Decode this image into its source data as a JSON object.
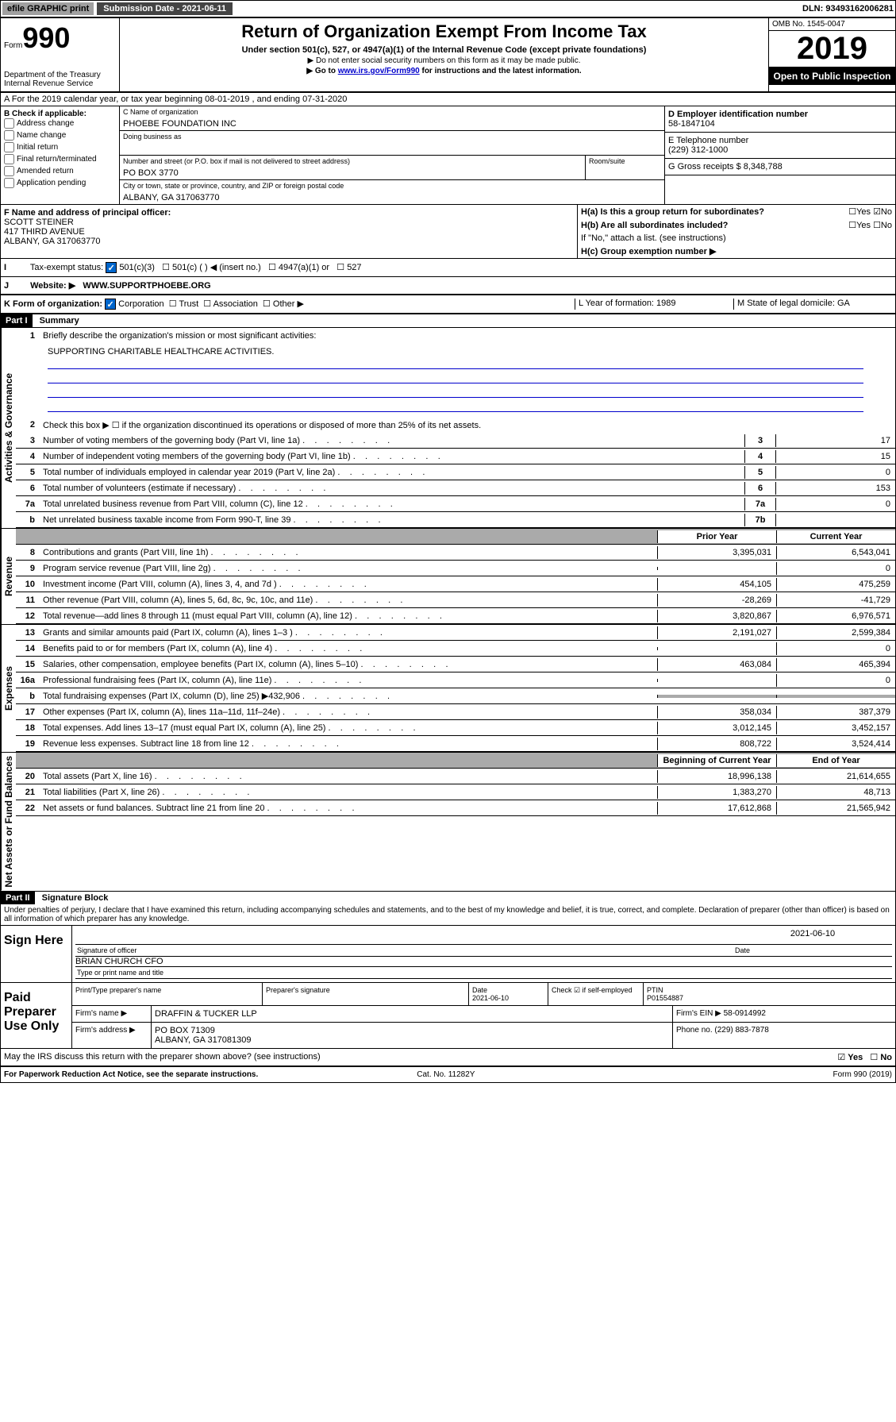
{
  "topbar": {
    "efile": "efile GRAPHIC print",
    "subdate_label": "Submission Date - 2021-06-11",
    "dln": "DLN: 93493162006281"
  },
  "header": {
    "form_label": "Form",
    "form_num": "990",
    "dept": "Department of the Treasury Internal Revenue Service",
    "title": "Return of Organization Exempt From Income Tax",
    "subtitle": "Under section 501(c), 527, or 4947(a)(1) of the Internal Revenue Code (except private foundations)",
    "note1": "▶ Do not enter social security numbers on this form as it may be made public.",
    "note2_pre": "▶ Go to ",
    "note2_link": "www.irs.gov/Form990",
    "note2_post": " for instructions and the latest information.",
    "omb": "OMB No. 1545-0047",
    "year": "2019",
    "open": "Open to Public Inspection"
  },
  "rowA": "A For the 2019 calendar year, or tax year beginning 08-01-2019    , and ending 07-31-2020",
  "boxB": {
    "label": "B Check if applicable:",
    "opts": [
      "Address change",
      "Name change",
      "Initial return",
      "Final return/terminated",
      "Amended return",
      "Application pending"
    ]
  },
  "boxC": {
    "name_label": "C Name of organization",
    "name": "PHOEBE FOUNDATION INC",
    "dba_label": "Doing business as",
    "addr_label": "Number and street (or P.O. box if mail is not delivered to street address)",
    "room_label": "Room/suite",
    "addr": "PO BOX 3770",
    "city_label": "City or town, state or province, country, and ZIP or foreign postal code",
    "city": "ALBANY, GA  317063770"
  },
  "boxD": {
    "label": "D Employer identification number",
    "val": "58-1847104"
  },
  "boxE": {
    "label": "E Telephone number",
    "val": "(229) 312-1000"
  },
  "boxG": {
    "label": "G Gross receipts $ 8,348,788"
  },
  "boxF": {
    "label": "F  Name and address of principal officer:",
    "name": "SCOTT STEINER",
    "addr1": "417 THIRD AVENUE",
    "addr2": "ALBANY, GA  317063770"
  },
  "boxH": {
    "a": "H(a)  Is this a group return for subordinates?",
    "b": "H(b)  Are all subordinates included?",
    "note": "If \"No,\" attach a list. (see instructions)",
    "c": "H(c)  Group exemption number ▶"
  },
  "rowI": {
    "label": "Tax-exempt status:",
    "opts": [
      "501(c)(3)",
      "501(c) (   ) ◀ (insert no.)",
      "4947(a)(1) or",
      "527"
    ]
  },
  "rowJ": {
    "label": "J",
    "text": "Website: ▶",
    "val": "WWW.SUPPORTPHOEBE.ORG"
  },
  "rowK": {
    "label": "K Form of organization:",
    "opts": [
      "Corporation",
      "Trust",
      "Association",
      "Other ▶"
    ],
    "L": "L Year of formation: 1989",
    "M": "M State of legal domicile: GA"
  },
  "part1": {
    "label": "Part I",
    "title": "Summary",
    "q1": "Briefly describe the organization's mission or most significant activities:",
    "mission": "SUPPORTING CHARITABLE HEALTHCARE ACTIVITIES.",
    "q2": "Check this box ▶ ☐  if the organization discontinued its operations or disposed of more than 25% of its net assets.",
    "prior": "Prior Year",
    "current": "Current Year",
    "begin": "Beginning of Current Year",
    "end": "End of Year"
  },
  "govLabel": "Activities & Governance",
  "revLabel": "Revenue",
  "expLabel": "Expenses",
  "netLabel": "Net Assets or Fund Balances",
  "lines_gov": [
    {
      "n": "3",
      "t": "Number of voting members of the governing body (Part VI, line 1a)",
      "b": "3",
      "v": "17"
    },
    {
      "n": "4",
      "t": "Number of independent voting members of the governing body (Part VI, line 1b)",
      "b": "4",
      "v": "15"
    },
    {
      "n": "5",
      "t": "Total number of individuals employed in calendar year 2019 (Part V, line 2a)",
      "b": "5",
      "v": "0"
    },
    {
      "n": "6",
      "t": "Total number of volunteers (estimate if necessary)",
      "b": "6",
      "v": "153"
    },
    {
      "n": "7a",
      "t": "Total unrelated business revenue from Part VIII, column (C), line 12",
      "b": "7a",
      "v": "0"
    },
    {
      "n": "b",
      "t": "Net unrelated business taxable income from Form 990-T, line 39",
      "b": "7b",
      "v": ""
    }
  ],
  "lines_rev": [
    {
      "n": "8",
      "t": "Contributions and grants (Part VIII, line 1h)",
      "p": "3,395,031",
      "c": "6,543,041"
    },
    {
      "n": "9",
      "t": "Program service revenue (Part VIII, line 2g)",
      "p": "",
      "c": "0"
    },
    {
      "n": "10",
      "t": "Investment income (Part VIII, column (A), lines 3, 4, and 7d )",
      "p": "454,105",
      "c": "475,259"
    },
    {
      "n": "11",
      "t": "Other revenue (Part VIII, column (A), lines 5, 6d, 8c, 9c, 10c, and 11e)",
      "p": "-28,269",
      "c": "-41,729"
    },
    {
      "n": "12",
      "t": "Total revenue—add lines 8 through 11 (must equal Part VIII, column (A), line 12)",
      "p": "3,820,867",
      "c": "6,976,571"
    }
  ],
  "lines_exp": [
    {
      "n": "13",
      "t": "Grants and similar amounts paid (Part IX, column (A), lines 1–3 )",
      "p": "2,191,027",
      "c": "2,599,384"
    },
    {
      "n": "14",
      "t": "Benefits paid to or for members (Part IX, column (A), line 4)",
      "p": "",
      "c": "0"
    },
    {
      "n": "15",
      "t": "Salaries, other compensation, employee benefits (Part IX, column (A), lines 5–10)",
      "p": "463,084",
      "c": "465,394"
    },
    {
      "n": "16a",
      "t": "Professional fundraising fees (Part IX, column (A), line 11e)",
      "p": "",
      "c": "0"
    },
    {
      "n": "b",
      "t": "Total fundraising expenses (Part IX, column (D), line 25) ▶432,906",
      "p": "",
      "c": ""
    },
    {
      "n": "17",
      "t": "Other expenses (Part IX, column (A), lines 11a–11d, 11f–24e)",
      "p": "358,034",
      "c": "387,379"
    },
    {
      "n": "18",
      "t": "Total expenses. Add lines 13–17 (must equal Part IX, column (A), line 25)",
      "p": "3,012,145",
      "c": "3,452,157"
    },
    {
      "n": "19",
      "t": "Revenue less expenses. Subtract line 18 from line 12",
      "p": "808,722",
      "c": "3,524,414"
    }
  ],
  "lines_net": [
    {
      "n": "20",
      "t": "Total assets (Part X, line 16)",
      "p": "18,996,138",
      "c": "21,614,655"
    },
    {
      "n": "21",
      "t": "Total liabilities (Part X, line 26)",
      "p": "1,383,270",
      "c": "48,713"
    },
    {
      "n": "22",
      "t": "Net assets or fund balances. Subtract line 21 from line 20",
      "p": "17,612,868",
      "c": "21,565,942"
    }
  ],
  "part2": {
    "label": "Part II",
    "title": "Signature Block",
    "perjury": "Under penalties of perjury, I declare that I have examined this return, including accompanying schedules and statements, and to the best of my knowledge and belief, it is true, correct, and complete. Declaration of preparer (other than officer) is based on all information of which preparer has any knowledge."
  },
  "sign": {
    "label": "Sign Here",
    "sig_label": "Signature of officer",
    "date": "2021-06-10",
    "date_label": "Date",
    "name": "BRIAN CHURCH  CFO",
    "name_label": "Type or print name and title"
  },
  "paid": {
    "label": "Paid Preparer Use Only",
    "c1": "Print/Type preparer's name",
    "c2": "Preparer's signature",
    "c3": "Date",
    "c3v": "2021-06-10",
    "c4": "Check ☑ if self-employed",
    "c5": "PTIN",
    "c5v": "P01554887",
    "firm_label": "Firm's name    ▶",
    "firm": "DRAFFIN & TUCKER LLP",
    "ein": "Firm's EIN ▶ 58-0914992",
    "addr_label": "Firm's address ▶",
    "addr": "PO BOX 71309",
    "addr2": "ALBANY, GA  317081309",
    "phone": "Phone no. (229) 883-7878"
  },
  "footer": {
    "q": "May the IRS discuss this return with the preparer shown above? (see instructions)",
    "paperwork": "For Paperwork Reduction Act Notice, see the separate instructions.",
    "cat": "Cat. No. 11282Y",
    "form": "Form 990 (2019)"
  }
}
